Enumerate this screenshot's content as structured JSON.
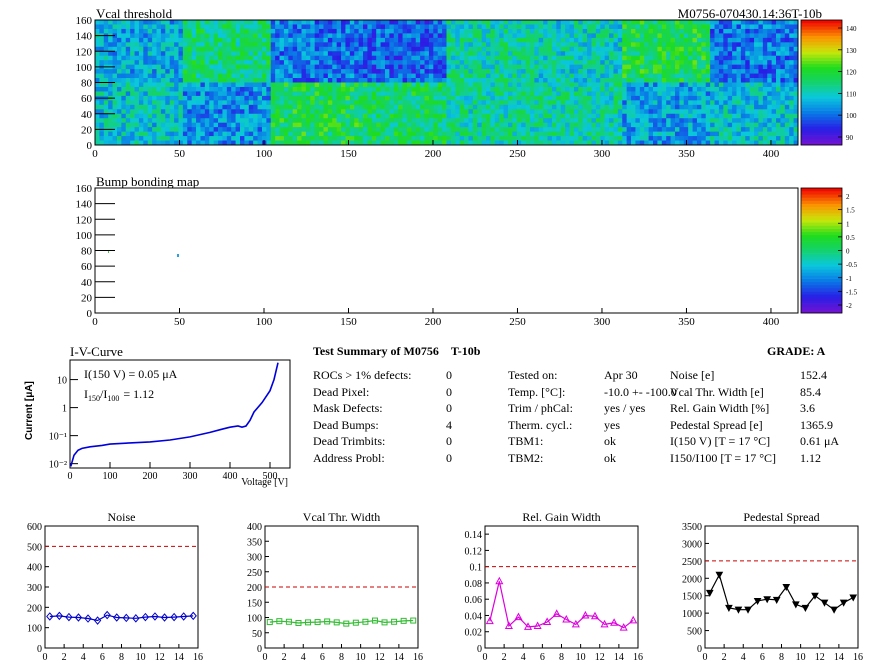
{
  "map1": {
    "title": "Vcal threshold",
    "module_tag": "M0756-070430.14:36T-10b",
    "y_ticks": [
      "0",
      "20",
      "40",
      "60",
      "80",
      "100",
      "120",
      "140",
      "160"
    ],
    "x_ticks": [
      "0",
      "50",
      "100",
      "150",
      "200",
      "250",
      "300",
      "350",
      "400"
    ],
    "palette_ticks": [
      "140",
      "130",
      "120",
      "110",
      "100",
      "90"
    ]
  },
  "map2": {
    "title": "Bump bonding map",
    "y_ticks": [
      "0",
      "20",
      "40",
      "60",
      "80",
      "100",
      "120",
      "140",
      "160"
    ],
    "x_ticks": [
      "0",
      "50",
      "100",
      "150",
      "200",
      "250",
      "300",
      "350",
      "400"
    ],
    "palette_ticks": [
      "2",
      "1.5",
      "1",
      "0.5",
      "0",
      "-0.5",
      "-1",
      "-1.5",
      "-2"
    ]
  },
  "iv": {
    "title": "I-V-Curve",
    "annotation1": "I(150 V) = 0.05 μA",
    "annotation2_prefix": "I",
    "annotation2_sub1": "150",
    "annotation2_mid": "/I",
    "annotation2_sub2": "100",
    "annotation2_value": "=  1.12",
    "ylabel": "Current [μA]",
    "xlabel": "Voltage [V]",
    "x_ticks": [
      "0",
      "100",
      "200",
      "300",
      "400",
      "500"
    ],
    "y_ticks": [
      "10⁻²",
      "10⁻¹",
      "1",
      "10"
    ]
  },
  "summary": {
    "title": "Test Summary of M0756",
    "title_tag": "T-10b",
    "grade": "GRADE:  A",
    "defects": [
      {
        "label": "ROCs > 1% defects:",
        "value": "0"
      },
      {
        "label": "Dead Pixel:",
        "value": "0"
      },
      {
        "label": "Mask Defects:",
        "value": "0"
      },
      {
        "label": "Dead Bumps:",
        "value": "4"
      },
      {
        "label": "Dead Trimbits:",
        "value": "0"
      },
      {
        "label": "Address Probl:",
        "value": "0"
      }
    ],
    "tests": [
      {
        "label": "Tested on:",
        "value": "Apr 30"
      },
      {
        "label": "Temp. [°C]:",
        "value": "-10.0 +- -100.0"
      },
      {
        "label": "Trim / phCal:",
        "value": "yes / yes"
      },
      {
        "label": "Therm. cycl.:",
        "value": "yes"
      },
      {
        "label": "TBM1:",
        "value": "ok"
      },
      {
        "label": "TBM2:",
        "value": "ok"
      }
    ],
    "results": [
      {
        "label": "Noise [e]",
        "value": "152.4"
      },
      {
        "label": "Vcal Thr. Width [e]",
        "value": "85.4"
      },
      {
        "label": "Rel. Gain Width [%]",
        "value": "3.6"
      },
      {
        "label": "Pedestal Spread [e]",
        "value": "1365.9"
      },
      {
        "label": "I(150 V) [T = 17 °C]",
        "value": "0.61 μA"
      },
      {
        "label": "I150/I100  [T = 17 °C]",
        "value": "1.12"
      }
    ]
  },
  "colors": {
    "noise": "#0000cc",
    "vcal": "#33bb33",
    "gain": "#dd00dd",
    "pedestal": "#000000",
    "limit": "#cc0000",
    "iv": "#0000dd"
  },
  "chart_data": [
    {
      "type": "heatmap",
      "title": "Vcal threshold",
      "xlim": [
        0,
        416
      ],
      "ylim": [
        0,
        160
      ],
      "zlim": [
        85,
        145
      ],
      "note_grid": "16 ROCs in 2 rows of 8",
      "roc_means_top": [
        105,
        115,
        100,
        98,
        112,
        110,
        118,
        100
      ],
      "roc_means_bottom": [
        108,
        102,
        118,
        116,
        112,
        112,
        104,
        108
      ]
    },
    {
      "type": "heatmap",
      "title": "Bump bonding map",
      "xlim": [
        0,
        416
      ],
      "ylim": [
        0,
        160
      ],
      "zlim": [
        -2,
        2
      ]
    },
    {
      "type": "line",
      "title": "I-V-Curve",
      "xlabel": "Voltage [V]",
      "ylabel": "Current [μA]",
      "log_y": true,
      "xlim": [
        0,
        550
      ],
      "ylim": [
        0.007,
        50
      ],
      "x": [
        2,
        10,
        20,
        30,
        50,
        80,
        100,
        150,
        200,
        250,
        300,
        350,
        380,
        400,
        420,
        430,
        440,
        450,
        460,
        480,
        500,
        510,
        520
      ],
      "y": [
        0.008,
        0.02,
        0.03,
        0.035,
        0.04,
        0.045,
        0.05,
        0.055,
        0.06,
        0.07,
        0.09,
        0.13,
        0.17,
        0.2,
        0.22,
        0.2,
        0.22,
        0.35,
        0.7,
        1.5,
        4,
        10,
        40
      ]
    },
    {
      "type": "line",
      "title": "Noise",
      "xlim": [
        0,
        16
      ],
      "ylim": [
        0,
        600
      ],
      "limit": 500,
      "x": [
        0,
        1,
        2,
        3,
        4,
        5,
        6,
        7,
        8,
        9,
        10,
        11,
        12,
        13,
        14,
        15
      ],
      "values": [
        155,
        158,
        152,
        150,
        145,
        135,
        162,
        150,
        148,
        146,
        152,
        155,
        150,
        152,
        155,
        158
      ]
    },
    {
      "type": "line",
      "title": "Vcal Thr. Width",
      "xlim": [
        0,
        16
      ],
      "ylim": [
        0,
        400
      ],
      "limit": 200,
      "x": [
        0,
        1,
        2,
        3,
        4,
        5,
        6,
        7,
        8,
        9,
        10,
        11,
        12,
        13,
        14,
        15
      ],
      "values": [
        85,
        88,
        86,
        82,
        84,
        85,
        87,
        84,
        80,
        83,
        86,
        90,
        84,
        86,
        89,
        90
      ]
    },
    {
      "type": "line",
      "title": "Rel. Gain Width",
      "xlim": [
        0,
        16
      ],
      "ylim": [
        0,
        0.15
      ],
      "limit": 0.1,
      "x": [
        0,
        1,
        2,
        3,
        4,
        5,
        6,
        7,
        8,
        9,
        10,
        11,
        12,
        13,
        14,
        15
      ],
      "values": [
        0.033,
        0.082,
        0.027,
        0.038,
        0.026,
        0.027,
        0.032,
        0.042,
        0.035,
        0.029,
        0.04,
        0.039,
        0.029,
        0.031,
        0.025,
        0.034
      ]
    },
    {
      "type": "line",
      "title": "Pedestal Spread",
      "xlim": [
        0,
        16
      ],
      "ylim": [
        0,
        3500
      ],
      "limit": 2500,
      "x": [
        0,
        1,
        2,
        3,
        4,
        5,
        6,
        7,
        8,
        9,
        10,
        11,
        12,
        13,
        14,
        15
      ],
      "values": [
        1580,
        2100,
        1150,
        1100,
        1100,
        1350,
        1400,
        1380,
        1750,
        1250,
        1150,
        1500,
        1300,
        1100,
        1300,
        1450
      ]
    }
  ]
}
